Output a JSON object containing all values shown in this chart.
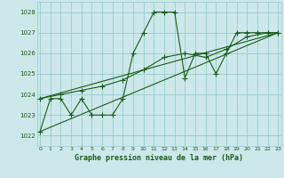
{
  "title": "Graphe pression niveau de la mer (hPa)",
  "bg_color": "#cce8ea",
  "grid_color": "#99cccc",
  "line_color": "#1a5c1a",
  "ylim": [
    1021.5,
    1028.5
  ],
  "xlim": [
    -0.3,
    23.3
  ],
  "yticks": [
    1022,
    1023,
    1024,
    1025,
    1026,
    1027,
    1028
  ],
  "xticks": [
    0,
    1,
    2,
    3,
    4,
    5,
    6,
    7,
    8,
    9,
    10,
    11,
    12,
    13,
    14,
    15,
    16,
    17,
    18,
    19,
    20,
    21,
    22,
    23
  ],
  "series1_x": [
    0,
    1,
    2,
    3,
    4,
    5,
    6,
    7,
    8,
    9,
    10,
    11,
    12,
    13,
    14,
    15,
    16,
    17,
    18,
    19,
    20,
    21,
    22,
    23
  ],
  "series1_y": [
    1022.2,
    1023.8,
    1023.8,
    1023.0,
    1023.8,
    1023.0,
    1023.0,
    1023.0,
    1023.8,
    1026.0,
    1027.0,
    1028.0,
    1028.0,
    1028.0,
    1024.8,
    1026.0,
    1026.0,
    1025.0,
    1026.0,
    1027.0,
    1027.0,
    1027.0,
    1027.0,
    1027.0
  ],
  "series2_x": [
    0,
    2,
    4,
    6,
    8,
    10,
    12,
    14,
    16,
    18,
    20,
    22,
    23
  ],
  "series2_y": [
    1023.8,
    1024.0,
    1024.2,
    1024.4,
    1024.7,
    1025.2,
    1025.8,
    1026.0,
    1025.8,
    1026.2,
    1026.8,
    1027.0,
    1027.0
  ],
  "series3_x": [
    0,
    23
  ],
  "series3_y": [
    1023.8,
    1027.0
  ],
  "series4_x": [
    0,
    23
  ],
  "series4_y": [
    1022.2,
    1027.0
  ]
}
